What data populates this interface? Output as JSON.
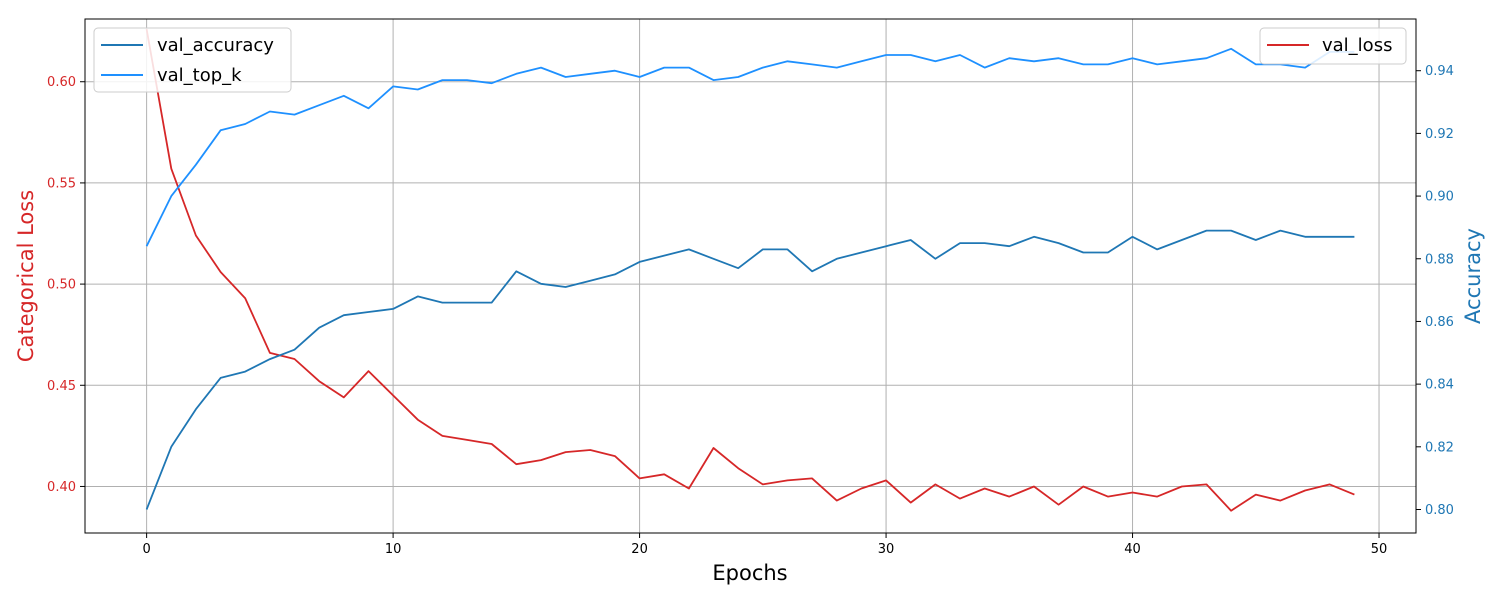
{
  "chart_data": {
    "type": "line",
    "xlabel": "Epochs",
    "ylabel_left": "Categorical Loss",
    "ylabel_right": "Accuracy",
    "xlim": [
      -2.5,
      51.5
    ],
    "ylim_left": [
      0.377,
      0.631
    ],
    "ylim_right": [
      0.7925,
      0.9565
    ],
    "x_ticks": [
      0,
      10,
      20,
      30,
      40,
      50
    ],
    "y_left_ticks": [
      0.4,
      0.45,
      0.5,
      0.55,
      0.6
    ],
    "y_right_ticks": [
      0.8,
      0.82,
      0.84,
      0.86,
      0.88,
      0.9,
      0.92,
      0.94
    ],
    "grid": true,
    "legend_left": {
      "placement": "top-left",
      "entries": [
        "val_accuracy",
        "val_top_k"
      ]
    },
    "legend_right": {
      "placement": "top-right",
      "entries": [
        "val_loss"
      ]
    },
    "colors": {
      "val_loss": "#d62728",
      "val_accuracy": "#1f77b4",
      "val_top_k": "#1e90ff",
      "left_axis": "#d62728",
      "right_axis": "#1f77b4"
    },
    "x": [
      0,
      1,
      2,
      3,
      4,
      5,
      6,
      7,
      8,
      9,
      10,
      11,
      12,
      13,
      14,
      15,
      16,
      17,
      18,
      19,
      20,
      21,
      22,
      23,
      24,
      25,
      26,
      27,
      28,
      29,
      30,
      31,
      32,
      33,
      34,
      35,
      36,
      37,
      38,
      39,
      40,
      41,
      42,
      43,
      44,
      45,
      46,
      47,
      48,
      49
    ],
    "series": [
      {
        "name": "val_loss",
        "axis": "left",
        "values": [
          0.626,
          0.557,
          0.524,
          0.506,
          0.493,
          0.466,
          0.463,
          0.452,
          0.444,
          0.457,
          0.445,
          0.433,
          0.425,
          0.423,
          0.421,
          0.411,
          0.413,
          0.417,
          0.418,
          0.415,
          0.404,
          0.406,
          0.399,
          0.419,
          0.409,
          0.401,
          0.403,
          0.404,
          0.393,
          0.399,
          0.403,
          0.392,
          0.401,
          0.394,
          0.399,
          0.395,
          0.4,
          0.391,
          0.4,
          0.395,
          0.397,
          0.395,
          0.4,
          0.401,
          0.388,
          0.396,
          0.393,
          0.398,
          0.401,
          0.396
        ]
      },
      {
        "name": "val_accuracy",
        "axis": "right",
        "values": [
          0.8,
          0.82,
          0.832,
          0.842,
          0.844,
          0.848,
          0.851,
          0.858,
          0.862,
          0.863,
          0.864,
          0.868,
          0.866,
          0.866,
          0.866,
          0.876,
          0.872,
          0.871,
          0.873,
          0.875,
          0.879,
          0.881,
          0.883,
          0.88,
          0.877,
          0.883,
          0.883,
          0.876,
          0.88,
          0.882,
          0.884,
          0.886,
          0.88,
          0.885,
          0.885,
          0.884,
          0.887,
          0.885,
          0.882,
          0.882,
          0.887,
          0.883,
          0.886,
          0.889,
          0.889,
          0.886,
          0.889,
          0.887,
          0.887,
          0.887
        ]
      },
      {
        "name": "val_top_k",
        "axis": "right",
        "values": [
          0.884,
          0.9,
          0.91,
          0.921,
          0.923,
          0.927,
          0.926,
          0.929,
          0.932,
          0.928,
          0.935,
          0.934,
          0.937,
          0.937,
          0.936,
          0.939,
          0.941,
          0.938,
          0.939,
          0.94,
          0.938,
          0.941,
          0.941,
          0.937,
          0.938,
          0.941,
          0.943,
          0.942,
          0.941,
          0.943,
          0.945,
          0.945,
          0.943,
          0.945,
          0.941,
          0.944,
          0.943,
          0.944,
          0.942,
          0.942,
          0.944,
          0.942,
          0.943,
          0.944,
          0.947,
          0.942,
          0.942,
          0.941,
          0.946,
          0.946
        ]
      }
    ]
  }
}
